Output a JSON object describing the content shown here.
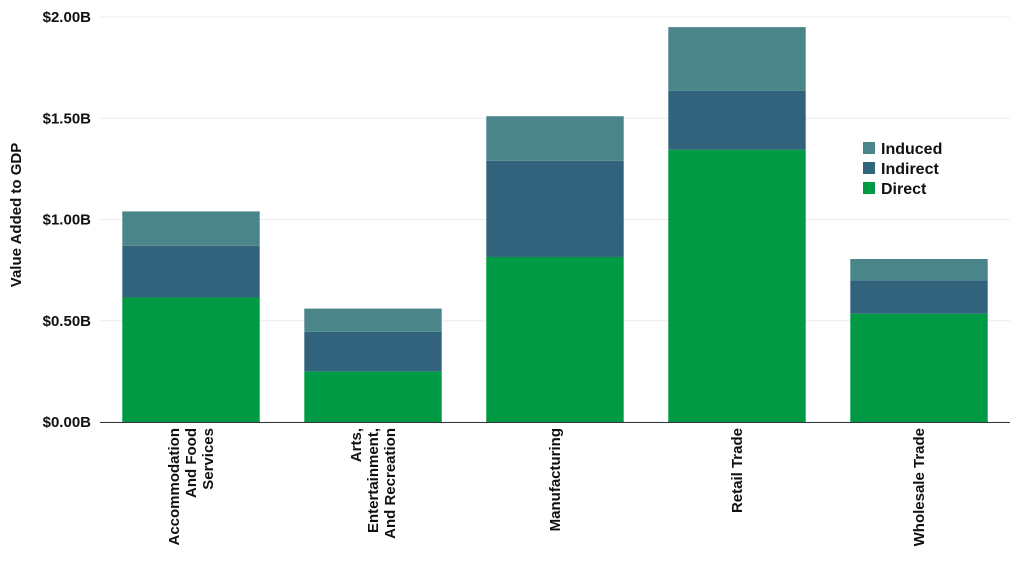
{
  "chart_data": {
    "type": "bar",
    "stacked": true,
    "categories": [
      [
        "Accommodation",
        "And Food",
        "Services"
      ],
      [
        "Arts,",
        "Entertainment,",
        "And Recreation"
      ],
      [
        "Manufacturing"
      ],
      [
        "Retail Trade"
      ],
      [
        "Wholesale Trade"
      ]
    ],
    "series": [
      {
        "name": "Direct",
        "color": "#009a44",
        "values": [
          0.615,
          0.25,
          0.815,
          1.345,
          0.535
        ]
      },
      {
        "name": "Indirect",
        "color": "#31647c",
        "values": [
          0.255,
          0.195,
          0.475,
          0.29,
          0.165
        ]
      },
      {
        "name": "Induced",
        "color": "#4a858a",
        "values": [
          0.17,
          0.115,
          0.22,
          0.315,
          0.105
        ]
      }
    ],
    "ylabel": "Value Added to GDP",
    "ylim": [
      0,
      2.0
    ],
    "yticks": [
      {
        "value": 0,
        "label": "$0.00B"
      },
      {
        "value": 0.5,
        "label": "$0.50B"
      },
      {
        "value": 1.0,
        "label": "$1.00B"
      },
      {
        "value": 1.5,
        "label": "$1.50B"
      },
      {
        "value": 2.0,
        "label": "$2.00B"
      }
    ],
    "legend": {
      "placement": "right",
      "order": [
        "Induced",
        "Indirect",
        "Direct"
      ]
    },
    "grid": true
  }
}
